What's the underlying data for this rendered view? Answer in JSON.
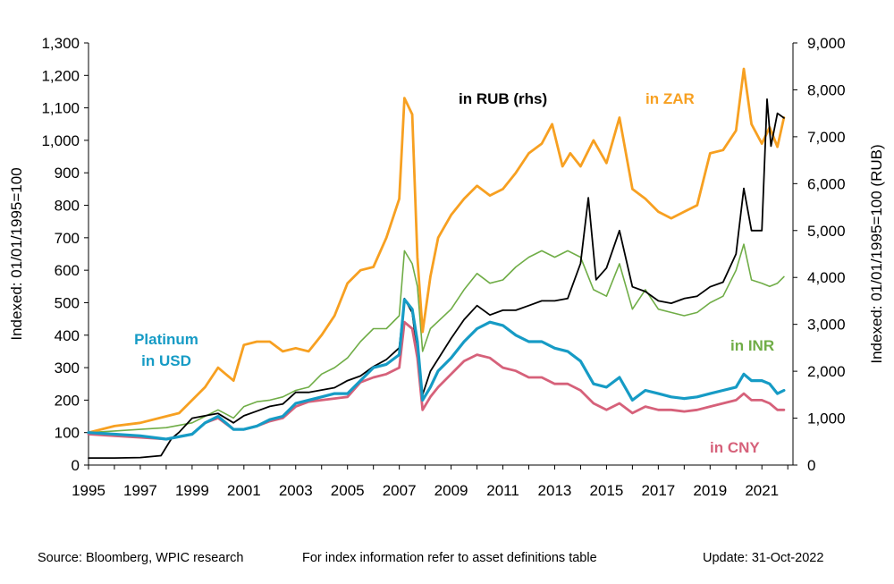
{
  "chart_data": {
    "type": "line",
    "title": "",
    "ylabel_left": "Indexed: 01/01/1995=100",
    "ylabel_right": "Indexed: 01/01/1995=100  (RUB)",
    "ylim_left": [
      0,
      1300
    ],
    "ylim_right": [
      0,
      9000
    ],
    "xlim": [
      1995,
      2022.2
    ],
    "x_ticks": [
      "1995",
      "1997",
      "1999",
      "2001",
      "2003",
      "2005",
      "2007",
      "2009",
      "2011",
      "2013",
      "2015",
      "2017",
      "2019",
      "2021"
    ],
    "y_ticks_left": [
      "0",
      "100",
      "200",
      "300",
      "400",
      "500",
      "600",
      "700",
      "800",
      "900",
      "1,000",
      "1,100",
      "1,200",
      "1,300"
    ],
    "y_ticks_right": [
      "0",
      "1,000",
      "2,000",
      "3,000",
      "4,000",
      "5,000",
      "6,000",
      "7,000",
      "8,000",
      "9,000"
    ],
    "grid": false,
    "series": [
      {
        "name": "in ZAR",
        "color": "#F7A021",
        "axis": "left",
        "x": [
          1995,
          1996,
          1997,
          1998,
          1998.5,
          1999,
          1999.5,
          2000,
          2000.6,
          2001,
          2001.5,
          2002,
          2002.5,
          2003,
          2003.5,
          2004,
          2004.5,
          2005,
          2005.5,
          2006,
          2006.5,
          2007,
          2007.2,
          2007.5,
          2007.7,
          2007.9,
          2008.2,
          2008.5,
          2009,
          2009.5,
          2010,
          2010.5,
          2011,
          2011.5,
          2012,
          2012.5,
          2012.9,
          2013.3,
          2013.6,
          2014,
          2014.5,
          2015,
          2015.5,
          2016,
          2016.5,
          2017,
          2017.5,
          2018,
          2018.5,
          2019,
          2019.5,
          2020,
          2020.3,
          2020.6,
          2021,
          2021.3,
          2021.6,
          2021.85
        ],
        "values": [
          100,
          120,
          130,
          150,
          160,
          200,
          240,
          300,
          260,
          370,
          380,
          380,
          350,
          360,
          350,
          400,
          460,
          560,
          600,
          610,
          700,
          820,
          1130,
          1080,
          640,
          410,
          580,
          700,
          770,
          820,
          860,
          830,
          850,
          900,
          960,
          990,
          1050,
          920,
          960,
          920,
          1000,
          930,
          1070,
          850,
          820,
          780,
          760,
          780,
          800,
          960,
          970,
          1030,
          1220,
          1050,
          990,
          1040,
          980,
          1070
        ]
      },
      {
        "name": "in RUB (rhs)",
        "color": "#000000",
        "axis": "right",
        "x": [
          1995,
          1996,
          1997,
          1997.8,
          1998.2,
          1998.5,
          1999,
          1999.5,
          2000,
          2000.6,
          2001,
          2001.5,
          2002,
          2002.5,
          2003,
          2003.5,
          2004,
          2004.5,
          2005,
          2005.5,
          2006,
          2006.5,
          2007,
          2007.2,
          2007.5,
          2007.9,
          2008.2,
          2009,
          2009.5,
          2010,
          2010.5,
          2011,
          2011.5,
          2012,
          2012.5,
          2013,
          2013.5,
          2014,
          2014.3,
          2014.6,
          2015,
          2015.5,
          2016,
          2016.5,
          2017,
          2017.5,
          2018,
          2018.5,
          2019,
          2019.5,
          2020,
          2020.3,
          2020.6,
          2021,
          2021.2,
          2021.35,
          2021.6,
          2021.85
        ],
        "values": [
          150,
          150,
          160,
          200,
          560,
          700,
          1000,
          1050,
          1100,
          900,
          1050,
          1150,
          1250,
          1300,
          1550,
          1550,
          1600,
          1650,
          1800,
          1900,
          2100,
          2250,
          2500,
          3550,
          3250,
          1500,
          2000,
          2700,
          3100,
          3400,
          3200,
          3300,
          3300,
          3400,
          3500,
          3500,
          3550,
          4300,
          5700,
          3950,
          4200,
          5000,
          3800,
          3700,
          3500,
          3450,
          3550,
          3600,
          3800,
          3900,
          4500,
          5900,
          5000,
          5000,
          7800,
          6800,
          7500,
          7400
        ]
      },
      {
        "name": "in INR",
        "color": "#70AD47",
        "axis": "left",
        "x": [
          1995,
          1996,
          1997,
          1998,
          1999,
          1999.5,
          2000,
          2000.6,
          2001,
          2001.5,
          2002,
          2002.5,
          2003,
          2003.5,
          2004,
          2004.5,
          2005,
          2005.5,
          2006,
          2006.5,
          2007,
          2007.2,
          2007.5,
          2007.7,
          2007.9,
          2008.2,
          2009,
          2009.5,
          2010,
          2010.5,
          2011,
          2011.5,
          2012,
          2012.5,
          2013,
          2013.5,
          2014,
          2014.5,
          2015,
          2015.5,
          2016,
          2016.5,
          2017,
          2017.5,
          2018,
          2018.5,
          2019,
          2019.5,
          2020,
          2020.3,
          2020.6,
          2021,
          2021.3,
          2021.6,
          2021.85
        ],
        "values": [
          100,
          105,
          110,
          115,
          130,
          150,
          170,
          145,
          180,
          195,
          200,
          210,
          230,
          240,
          280,
          300,
          330,
          380,
          420,
          420,
          460,
          660,
          620,
          550,
          350,
          420,
          480,
          540,
          590,
          560,
          570,
          610,
          640,
          660,
          640,
          660,
          640,
          540,
          520,
          620,
          480,
          540,
          480,
          470,
          460,
          470,
          500,
          520,
          600,
          680,
          570,
          560,
          550,
          560,
          580
        ]
      },
      {
        "name": "Platinum in USD",
        "color": "#169BC5",
        "axis": "left",
        "x": [
          1995,
          1996,
          1997,
          1998,
          1999,
          1999.5,
          2000,
          2000.6,
          2001,
          2001.5,
          2002,
          2002.5,
          2003,
          2003.5,
          2004,
          2004.5,
          2005,
          2005.5,
          2006,
          2006.5,
          2007,
          2007.2,
          2007.5,
          2007.7,
          2007.9,
          2008.2,
          2008.5,
          2009,
          2009.5,
          2010,
          2010.5,
          2011,
          2011.5,
          2012,
          2012.5,
          2013,
          2013.5,
          2014,
          2014.5,
          2015,
          2015.5,
          2016,
          2016.5,
          2017,
          2017.5,
          2018,
          2018.5,
          2019,
          2019.5,
          2020,
          2020.3,
          2020.6,
          2021,
          2021.3,
          2021.6,
          2021.85
        ],
        "values": [
          100,
          95,
          90,
          80,
          95,
          130,
          150,
          110,
          110,
          120,
          140,
          150,
          190,
          200,
          210,
          220,
          220,
          260,
          300,
          310,
          340,
          510,
          480,
          380,
          200,
          240,
          290,
          330,
          380,
          420,
          440,
          430,
          400,
          380,
          380,
          360,
          350,
          320,
          250,
          240,
          270,
          200,
          230,
          220,
          210,
          205,
          210,
          220,
          230,
          240,
          280,
          260,
          260,
          250,
          220,
          230
        ]
      },
      {
        "name": "in CNY",
        "color": "#D6617A",
        "axis": "left",
        "x": [
          1995,
          1996,
          1997,
          1998,
          1999,
          1999.5,
          2000,
          2000.6,
          2001,
          2001.5,
          2002,
          2002.5,
          2003,
          2003.5,
          2004,
          2004.5,
          2005,
          2005.5,
          2006,
          2006.5,
          2007,
          2007.2,
          2007.5,
          2007.7,
          2007.9,
          2008.2,
          2008.5,
          2009,
          2009.5,
          2010,
          2010.5,
          2011,
          2011.5,
          2012,
          2012.5,
          2013,
          2013.5,
          2014,
          2014.5,
          2015,
          2015.5,
          2016,
          2016.5,
          2017,
          2017.5,
          2018,
          2018.5,
          2019,
          2019.5,
          2020,
          2020.3,
          2020.6,
          2021,
          2021.3,
          2021.6,
          2021.85
        ],
        "values": [
          95,
          90,
          85,
          80,
          95,
          130,
          145,
          110,
          110,
          120,
          135,
          145,
          180,
          195,
          200,
          205,
          210,
          255,
          270,
          280,
          300,
          440,
          420,
          330,
          170,
          210,
          240,
          280,
          320,
          340,
          330,
          300,
          290,
          270,
          270,
          250,
          250,
          230,
          190,
          170,
          190,
          160,
          180,
          170,
          170,
          165,
          170,
          180,
          190,
          200,
          220,
          200,
          200,
          190,
          170,
          170
        ]
      }
    ],
    "annotations": [
      {
        "text": "in RUB (rhs)",
        "color": "#000000"
      },
      {
        "text": "in ZAR",
        "color": "#F7A021"
      },
      {
        "text": "Platinum",
        "color": "#169BC5"
      },
      {
        "text": "in USD",
        "color": "#169BC5"
      },
      {
        "text": "in INR",
        "color": "#70AD47"
      },
      {
        "text": "in CNY",
        "color": "#D6617A"
      }
    ]
  },
  "footer": {
    "source": "Source: Bloomberg, WPIC research",
    "note": "For index information refer to asset definitions table",
    "update": "Update: 31-Oct-2022"
  }
}
